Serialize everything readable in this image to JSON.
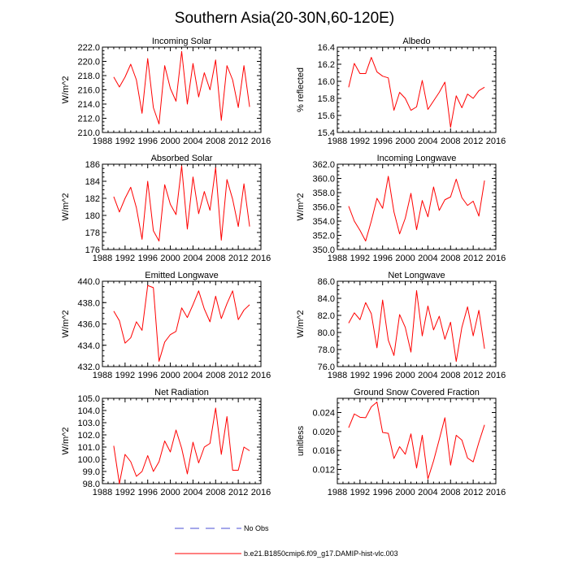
{
  "figure": {
    "title": "Southern Asia(20-30N,60-120E)"
  },
  "legend": {
    "entries": [
      {
        "label": "No Obs",
        "color": "#4a4fd6",
        "style": "dashed"
      },
      {
        "label": "b.e21.B1850cmip6.f09_g17.DAMIP-hist-vlc.003",
        "color": "#ff0000",
        "style": "solid"
      }
    ]
  },
  "chart_data": [
    {
      "type": "line",
      "title": "Incoming Solar",
      "ylabel": "W/m^2",
      "xlim": [
        1988,
        2016
      ],
      "xticks": [
        "1988",
        "1992",
        "1996",
        "2000",
        "2004",
        "2008",
        "2012",
        "2016"
      ],
      "ylim": [
        210,
        222
      ],
      "yticks": [
        "210.0",
        "212.0",
        "214.0",
        "216.0",
        "218.0",
        "220.0",
        "222.0"
      ],
      "x": [
        1990,
        1991,
        1992,
        1993,
        1994,
        1995,
        1996,
        1997,
        1998,
        1999,
        2000,
        2001,
        2002,
        2003,
        2004,
        2005,
        2006,
        2007,
        2008,
        2009,
        2010,
        2011,
        2012,
        2013,
        2014
      ],
      "series": [
        {
          "color": "#ff0000",
          "values": [
            217.8,
            216.4,
            217.8,
            219.6,
            217.4,
            212.7,
            220.4,
            213.5,
            211.2,
            219.4,
            216.2,
            214.4,
            221.4,
            214.0,
            219.7,
            215.0,
            218.4,
            216.0,
            220.2,
            211.7,
            219.4,
            217.4,
            213.5,
            219.4,
            213.6
          ]
        }
      ]
    },
    {
      "type": "line",
      "title": "Albedo",
      "ylabel": "% reflected",
      "xlim": [
        1988,
        2016
      ],
      "xticks": [
        "1988",
        "1992",
        "1996",
        "2000",
        "2004",
        "2008",
        "2012",
        "2016"
      ],
      "ylim": [
        15.4,
        16.4
      ],
      "yticks": [
        "15.4",
        "15.6",
        "15.8",
        "16.0",
        "16.2",
        "16.4"
      ],
      "x": [
        1990,
        1991,
        1992,
        1993,
        1994,
        1995,
        1996,
        1997,
        1998,
        1999,
        2000,
        2001,
        2002,
        2003,
        2004,
        2005,
        2006,
        2007,
        2008,
        2009,
        2010,
        2011,
        2012,
        2013,
        2014
      ],
      "series": [
        {
          "color": "#ff0000",
          "values": [
            15.93,
            16.21,
            16.09,
            16.09,
            16.28,
            16.11,
            16.06,
            16.04,
            15.66,
            15.87,
            15.8,
            15.66,
            15.7,
            16.01,
            15.67,
            15.77,
            15.87,
            15.99,
            15.46,
            15.83,
            15.69,
            15.85,
            15.8,
            15.89,
            15.93
          ]
        }
      ]
    },
    {
      "type": "line",
      "title": "Absorbed Solar",
      "ylabel": "W/m^2",
      "xlim": [
        1988,
        2016
      ],
      "xticks": [
        "1988",
        "1992",
        "1996",
        "2000",
        "2004",
        "2008",
        "2012",
        "2016"
      ],
      "ylim": [
        176,
        186
      ],
      "yticks": [
        "176",
        "178",
        "180",
        "182",
        "184",
        "186"
      ],
      "x": [
        1990,
        1991,
        1992,
        1993,
        1994,
        1995,
        1996,
        1997,
        1998,
        1999,
        2000,
        2001,
        2002,
        2003,
        2004,
        2005,
        2006,
        2007,
        2008,
        2009,
        2010,
        2011,
        2012,
        2013,
        2014
      ],
      "series": [
        {
          "color": "#ff0000",
          "values": [
            182.2,
            180.4,
            182.0,
            183.3,
            180.9,
            177.2,
            184.0,
            178.2,
            177.0,
            183.6,
            181.3,
            180.1,
            185.8,
            178.4,
            184.5,
            180.2,
            182.8,
            180.6,
            185.6,
            177.1,
            184.2,
            181.9,
            178.7,
            183.7,
            178.7
          ]
        }
      ]
    },
    {
      "type": "line",
      "title": "Incoming Longwave",
      "ylabel": "W/m^2",
      "xlim": [
        1988,
        2016
      ],
      "xticks": [
        "1988",
        "1992",
        "1996",
        "2000",
        "2004",
        "2008",
        "2012",
        "2016"
      ],
      "ylim": [
        350,
        362
      ],
      "yticks": [
        "350.0",
        "352.0",
        "354.0",
        "356.0",
        "358.0",
        "360.0",
        "362.0"
      ],
      "x": [
        1990,
        1991,
        1992,
        1993,
        1994,
        1995,
        1996,
        1997,
        1998,
        1999,
        2000,
        2001,
        2002,
        2003,
        2004,
        2005,
        2006,
        2007,
        2008,
        2009,
        2010,
        2011,
        2012,
        2013,
        2014
      ],
      "series": [
        {
          "color": "#ff0000",
          "values": [
            356.1,
            354.0,
            352.7,
            351.2,
            354.0,
            357.2,
            355.8,
            360.3,
            355.3,
            352.2,
            354.4,
            357.9,
            352.8,
            356.9,
            354.6,
            358.8,
            355.5,
            357.0,
            357.4,
            359.9,
            357.3,
            356.2,
            356.8,
            354.7,
            359.7
          ]
        }
      ]
    },
    {
      "type": "line",
      "title": "Emitted Longwave",
      "ylabel": "W/m^2",
      "xlim": [
        1988,
        2016
      ],
      "xticks": [
        "1988",
        "1992",
        "1996",
        "2000",
        "2004",
        "2008",
        "2012",
        "2016"
      ],
      "ylim": [
        432,
        440
      ],
      "yticks": [
        "432.0",
        "434.0",
        "436.0",
        "438.0",
        "440.0"
      ],
      "x": [
        1990,
        1991,
        1992,
        1993,
        1994,
        1995,
        1996,
        1997,
        1998,
        1999,
        2000,
        2001,
        2002,
        2003,
        2004,
        2005,
        2006,
        2007,
        2008,
        2009,
        2010,
        2011,
        2012,
        2013,
        2014
      ],
      "series": [
        {
          "color": "#ff0000",
          "values": [
            437.2,
            436.3,
            434.2,
            434.7,
            436.2,
            435.4,
            439.6,
            439.4,
            432.5,
            434.3,
            435.0,
            435.3,
            437.5,
            436.6,
            437.8,
            439.1,
            437.4,
            436.2,
            438.6,
            436.5,
            437.9,
            439.1,
            436.4,
            437.3,
            437.8
          ]
        }
      ]
    },
    {
      "type": "line",
      "title": "Net Longwave",
      "ylabel": "W/m^2",
      "xlim": [
        1988,
        2016
      ],
      "xticks": [
        "1988",
        "1992",
        "1996",
        "2000",
        "2004",
        "2008",
        "2012",
        "2016"
      ],
      "ylim": [
        76,
        86
      ],
      "yticks": [
        "76.0",
        "78.0",
        "80.0",
        "82.0",
        "84.0",
        "86.0"
      ],
      "x": [
        1990,
        1991,
        1992,
        1993,
        1994,
        1995,
        1996,
        1997,
        1998,
        1999,
        2000,
        2001,
        2002,
        2003,
        2004,
        2005,
        2006,
        2007,
        2008,
        2009,
        2010,
        2011,
        2012,
        2013,
        2014
      ],
      "series": [
        {
          "color": "#ff0000",
          "values": [
            81.1,
            82.3,
            81.5,
            83.5,
            82.2,
            78.2,
            83.8,
            79.1,
            77.3,
            82.1,
            80.6,
            77.7,
            84.9,
            79.6,
            83.1,
            80.3,
            81.9,
            79.2,
            81.2,
            76.6,
            80.6,
            83.0,
            79.6,
            82.6,
            78.1
          ]
        }
      ]
    },
    {
      "type": "line",
      "title": "Net Radiation",
      "ylabel": "W/m^2",
      "xlim": [
        1988,
        2016
      ],
      "xticks": [
        "1988",
        "1992",
        "1996",
        "2000",
        "2004",
        "2008",
        "2012",
        "2016"
      ],
      "ylim": [
        98,
        105
      ],
      "yticks": [
        "98.0",
        "99.0",
        "100.0",
        "101.0",
        "102.0",
        "103.0",
        "104.0",
        "105.0"
      ],
      "x": [
        1990,
        1991,
        1992,
        1993,
        1994,
        1995,
        1996,
        1997,
        1998,
        1999,
        2000,
        2001,
        2002,
        2003,
        2004,
        2005,
        2006,
        2007,
        2008,
        2009,
        2010,
        2011,
        2012,
        2013,
        2014
      ],
      "series": [
        {
          "color": "#ff0000",
          "values": [
            101.1,
            98.0,
            100.4,
            99.8,
            98.6,
            99.0,
            100.3,
            99.0,
            99.8,
            101.5,
            100.6,
            102.4,
            100.9,
            98.8,
            101.4,
            99.7,
            101.0,
            101.3,
            104.2,
            100.4,
            103.5,
            99.1,
            99.1,
            101.0,
            100.7
          ]
        }
      ]
    },
    {
      "type": "line",
      "title": "Ground Snow Covered Fraction",
      "ylabel": "unitless",
      "xlim": [
        1988,
        2016
      ],
      "xticks": [
        "1988",
        "1992",
        "1996",
        "2000",
        "2004",
        "2008",
        "2012",
        "2016"
      ],
      "ylim": [
        0.009,
        0.027
      ],
      "yticks": [
        "0.012",
        "0.016",
        "0.020",
        "0.024"
      ],
      "x": [
        1990,
        1991,
        1992,
        1993,
        1994,
        1995,
        1996,
        1997,
        1998,
        1999,
        2000,
        2001,
        2002,
        2003,
        2004,
        2005,
        2006,
        2007,
        2008,
        2009,
        2010,
        2011,
        2012,
        2013,
        2014
      ],
      "series": [
        {
          "color": "#ff0000",
          "values": [
            0.0208,
            0.0237,
            0.023,
            0.0229,
            0.0252,
            0.0262,
            0.0198,
            0.0196,
            0.0143,
            0.0168,
            0.0152,
            0.0195,
            0.0123,
            0.0192,
            0.01,
            0.0138,
            0.0183,
            0.0229,
            0.0129,
            0.0192,
            0.0182,
            0.0144,
            0.0136,
            0.0177,
            0.0214
          ]
        }
      ]
    }
  ]
}
